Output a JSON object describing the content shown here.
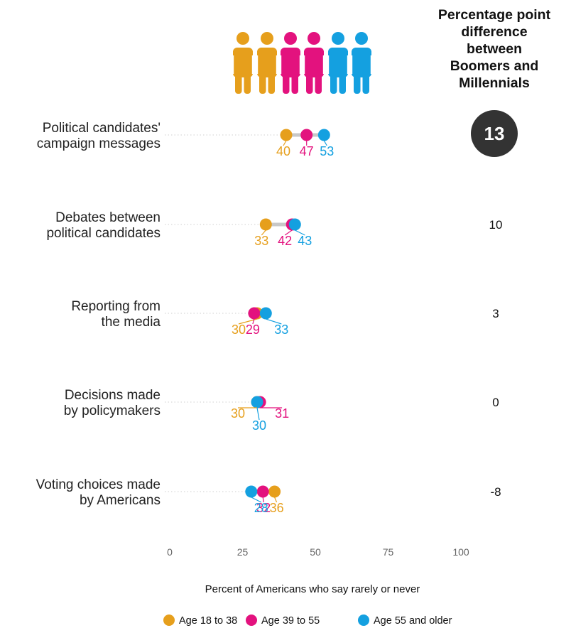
{
  "chart_data": {
    "type": "dot",
    "title": "",
    "xlabel": "Percent of Americans who say rarely or never",
    "xlim": [
      0,
      100
    ],
    "xticks": [
      0,
      25,
      50,
      75,
      100
    ],
    "grid": false,
    "legend_position": "bottom",
    "categories": [
      "Political candidates' campaign messages",
      "Debates between political candidates",
      "Reporting from the media",
      "Decisions made by policymakers",
      "Voting choices made by Americans"
    ],
    "category_lines": [
      [
        "Political candidates'",
        "campaign messages"
      ],
      [
        "Debates between",
        "political candidates"
      ],
      [
        "Reporting from",
        "the media"
      ],
      [
        "Decisions made",
        "by policymakers"
      ],
      [
        "Voting choices made",
        "by Americans"
      ]
    ],
    "series": [
      {
        "name": "Age 18 to 38",
        "color": "#E69F1C",
        "values": [
          40,
          33,
          30,
          30,
          36
        ]
      },
      {
        "name": "Age 39 to 55",
        "color": "#E3127E",
        "values": [
          47,
          42,
          29,
          31,
          32
        ]
      },
      {
        "name": "Age 55 and older",
        "color": "#14A0E0",
        "values": [
          53,
          43,
          33,
          30,
          28
        ]
      }
    ],
    "difference": {
      "title_lines": [
        "Percentage point",
        "difference",
        "between",
        "Boomers and",
        "Millennials"
      ],
      "values": [
        "13",
        "10",
        "3",
        "0",
        "-8"
      ],
      "highlight_index": 0,
      "highlight_color": "#333333"
    }
  },
  "figure_colors": [
    "#E69F1C",
    "#E69F1C",
    "#E3127E",
    "#E3127E",
    "#14A0E0",
    "#14A0E0"
  ]
}
